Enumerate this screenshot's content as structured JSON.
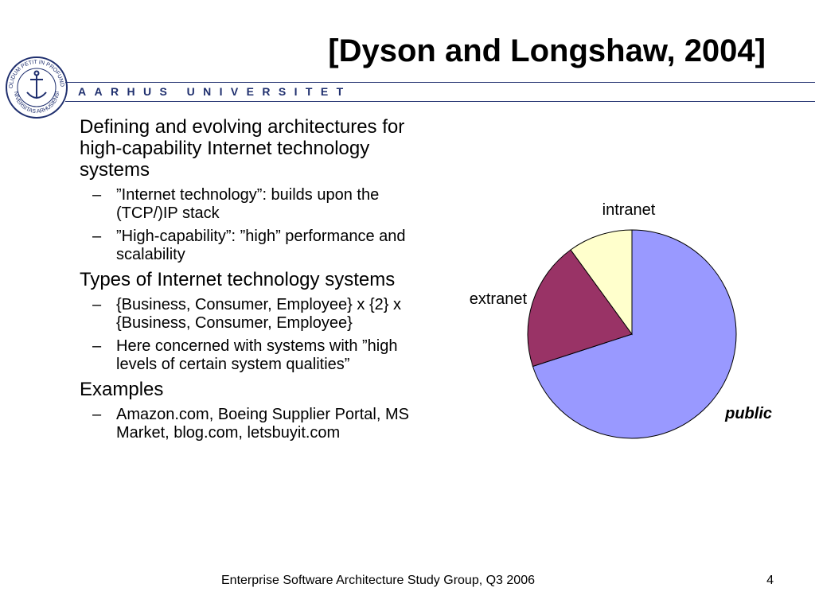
{
  "slide": {
    "title": "[Dyson and Longshaw, 2004]",
    "university": "AARHUS UNIVERSITET",
    "seal_text_top": "SOLIDUM PETIT IN PROFUNDIS",
    "seal_text_bottom": "UNIVERSITAS ARHUSIENSIS",
    "bullets": [
      {
        "text": "Defining and evolving architectures for high-capability Internet technology systems",
        "sub": [
          "”Internet technology”: builds upon the (TCP/)IP stack",
          "”High-capability”: ”high” performance and scalability"
        ]
      },
      {
        "text": "Types of Internet technology systems",
        "sub": [
          "{Business, Consumer, Employee} x {2} x {Business, Consumer, Employee}",
          "Here concerned with systems with ”high levels of certain system qualities”"
        ]
      },
      {
        "text": "Examples",
        "sub": [
          "Amazon.com, Boeing Supplier Portal, MS Market, blog.com, letsbuyit.com"
        ]
      }
    ],
    "sub_marker": "–",
    "footer": "Enterprise Software Architecture Study Group, Q3 2006",
    "page_number": "4"
  },
  "chart_data": {
    "type": "pie",
    "categories": [
      "public",
      "extranet",
      "intranet"
    ],
    "values": [
      70,
      20,
      10
    ],
    "colors": [
      "#9999ff",
      "#993366",
      "#ffffcc"
    ],
    "title": "",
    "start": "12 o'clock, clockwise"
  }
}
